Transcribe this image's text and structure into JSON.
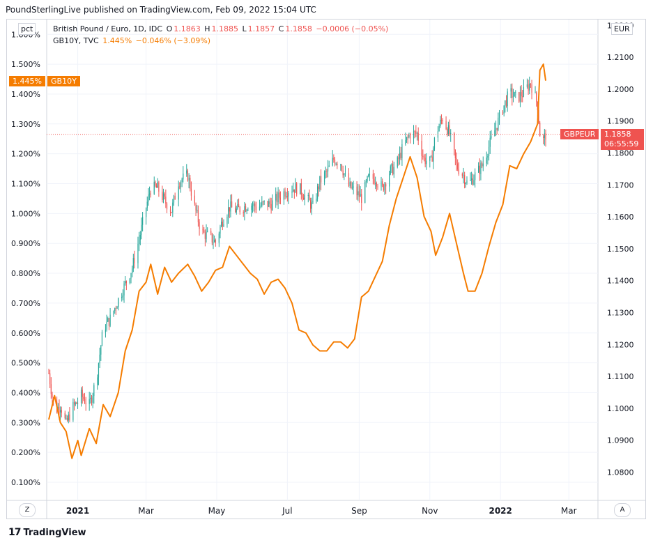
{
  "header": {
    "publisher": "PoundSterlingLive published on TradingView.com, Feb 09, 2022 15:04 UTC"
  },
  "legend": {
    "main_symbol": "British Pound / Euro, 1D, IDC",
    "o_label": "O",
    "o_value": "1.1863",
    "h_label": "H",
    "h_value": "1.1885",
    "l_label": "L",
    "l_value": "1.1857",
    "c_label": "C",
    "c_value": "1.1858",
    "change": "−0.0006 (−0.05%)",
    "overlay_symbol": "GB10Y, TVC",
    "overlay_value": "1.445%",
    "overlay_change": "−0.046% (−3.09%)"
  },
  "axes": {
    "left_unit": "pct",
    "right_unit": "EUR",
    "left_ticks": [
      "0.100%",
      "0.200%",
      "0.300%",
      "0.400%",
      "0.500%",
      "0.600%",
      "0.700%",
      "0.800%",
      "0.900%",
      "1.000%",
      "1.100%",
      "1.200%",
      "1.300%",
      "1.400%",
      "1.500%",
      "1.600%"
    ],
    "right_ticks": [
      "1.0800",
      "1.0900",
      "1.1000",
      "1.1100",
      "1.1200",
      "1.1300",
      "1.1400",
      "1.1500",
      "1.1600",
      "1.1700",
      "1.1800",
      "1.1900",
      "1.2000",
      "1.2100",
      "1.2200"
    ],
    "x_ticks": [
      "2021",
      "Mar",
      "May",
      "Jul",
      "Sep",
      "Nov",
      "2022",
      "Mar"
    ],
    "x_ticks_bold": [
      "2021",
      "2022"
    ]
  },
  "tags": {
    "gb10y_value": "1.445%",
    "gb10y_name": "GB10Y",
    "gbpeur_name": "GBPEUR",
    "gbpeur_value": "1.1858",
    "gbpeur_countdown": "06:55:59"
  },
  "buttons": {
    "left_scale": "Z",
    "right_scale": "A"
  },
  "footer": {
    "brand": "TradingView",
    "logo": "17"
  },
  "colors": {
    "up": "#26a69a",
    "down": "#ef5350",
    "yield_line": "#f57c00",
    "grid": "#f0f3fa",
    "price_line": "#ef5350"
  },
  "chart_data": {
    "type": "line",
    "x_start": "2020-12-07",
    "x_end": "2022-02-09",
    "series": [
      {
        "name": "GB10Y, TVC",
        "axis": "left",
        "unit": "pct",
        "points": [
          [
            "2020-12-07",
            0.31
          ],
          [
            "2020-12-12",
            0.39
          ],
          [
            "2020-12-17",
            0.3
          ],
          [
            "2020-12-22",
            0.27
          ],
          [
            "2020-12-27",
            0.18
          ],
          [
            "2021-01-01",
            0.24
          ],
          [
            "2021-01-04",
            0.19
          ],
          [
            "2021-01-11",
            0.28
          ],
          [
            "2021-01-17",
            0.23
          ],
          [
            "2021-01-23",
            0.36
          ],
          [
            "2021-01-29",
            0.32
          ],
          [
            "2021-02-05",
            0.4
          ],
          [
            "2021-02-11",
            0.54
          ],
          [
            "2021-02-17",
            0.61
          ],
          [
            "2021-02-23",
            0.74
          ],
          [
            "2021-03-01",
            0.77
          ],
          [
            "2021-03-05",
            0.83
          ],
          [
            "2021-03-11",
            0.73
          ],
          [
            "2021-03-17",
            0.82
          ],
          [
            "2021-03-23",
            0.77
          ],
          [
            "2021-03-29",
            0.8
          ],
          [
            "2021-04-06",
            0.83
          ],
          [
            "2021-04-12",
            0.79
          ],
          [
            "2021-04-18",
            0.74
          ],
          [
            "2021-04-24",
            0.77
          ],
          [
            "2021-04-30",
            0.81
          ],
          [
            "2021-05-06",
            0.82
          ],
          [
            "2021-05-12",
            0.89
          ],
          [
            "2021-05-18",
            0.86
          ],
          [
            "2021-05-24",
            0.83
          ],
          [
            "2021-05-30",
            0.8
          ],
          [
            "2021-06-05",
            0.78
          ],
          [
            "2021-06-11",
            0.73
          ],
          [
            "2021-06-17",
            0.77
          ],
          [
            "2021-06-23",
            0.78
          ],
          [
            "2021-06-29",
            0.75
          ],
          [
            "2021-07-05",
            0.7
          ],
          [
            "2021-07-11",
            0.61
          ],
          [
            "2021-07-17",
            0.6
          ],
          [
            "2021-07-23",
            0.56
          ],
          [
            "2021-07-29",
            0.54
          ],
          [
            "2021-08-04",
            0.54
          ],
          [
            "2021-08-10",
            0.57
          ],
          [
            "2021-08-16",
            0.57
          ],
          [
            "2021-08-22",
            0.55
          ],
          [
            "2021-08-28",
            0.58
          ],
          [
            "2021-09-03",
            0.72
          ],
          [
            "2021-09-09",
            0.74
          ],
          [
            "2021-09-15",
            0.79
          ],
          [
            "2021-09-21",
            0.84
          ],
          [
            "2021-09-27",
            0.96
          ],
          [
            "2021-10-03",
            1.05
          ],
          [
            "2021-10-09",
            1.12
          ],
          [
            "2021-10-15",
            1.19
          ],
          [
            "2021-10-21",
            1.12
          ],
          [
            "2021-10-27",
            0.99
          ],
          [
            "2021-11-02",
            0.94
          ],
          [
            "2021-11-06",
            0.86
          ],
          [
            "2021-11-12",
            0.92
          ],
          [
            "2021-11-18",
            1.0
          ],
          [
            "2021-11-24",
            0.9
          ],
          [
            "2021-11-30",
            0.8
          ],
          [
            "2021-12-04",
            0.74
          ],
          [
            "2021-12-10",
            0.74
          ],
          [
            "2021-12-16",
            0.8
          ],
          [
            "2021-12-22",
            0.89
          ],
          [
            "2021-12-28",
            0.97
          ],
          [
            "2022-01-03",
            1.03
          ],
          [
            "2022-01-09",
            1.16
          ],
          [
            "2022-01-15",
            1.15
          ],
          [
            "2022-01-21",
            1.2
          ],
          [
            "2022-01-27",
            1.24
          ],
          [
            "2022-02-02",
            1.3
          ],
          [
            "2022-02-04",
            1.48
          ],
          [
            "2022-02-07",
            1.5
          ],
          [
            "2022-02-09",
            1.445
          ]
        ]
      },
      {
        "name": "British Pound / Euro, 1D, IDC",
        "axis": "right",
        "unit": "EUR",
        "points": [
          [
            "2020-12-07",
            1.111
          ],
          [
            "2020-12-12",
            1.099
          ],
          [
            "2020-12-17",
            1.101
          ],
          [
            "2020-12-22",
            1.095
          ],
          [
            "2020-12-27",
            1.1
          ],
          [
            "2021-01-01",
            1.102
          ],
          [
            "2021-01-04",
            1.104
          ],
          [
            "2021-01-11",
            1.101
          ],
          [
            "2021-01-17",
            1.109
          ],
          [
            "2021-01-23",
            1.125
          ],
          [
            "2021-01-29",
            1.128
          ],
          [
            "2021-02-05",
            1.134
          ],
          [
            "2021-02-11",
            1.139
          ],
          [
            "2021-02-17",
            1.144
          ],
          [
            "2021-02-23",
            1.153
          ],
          [
            "2021-03-01",
            1.163
          ],
          [
            "2021-03-05",
            1.169
          ],
          [
            "2021-03-11",
            1.169
          ],
          [
            "2021-03-17",
            1.165
          ],
          [
            "2021-03-23",
            1.162
          ],
          [
            "2021-03-29",
            1.171
          ],
          [
            "2021-04-06",
            1.173
          ],
          [
            "2021-04-12",
            1.163
          ],
          [
            "2021-04-18",
            1.155
          ],
          [
            "2021-04-24",
            1.154
          ],
          [
            "2021-04-30",
            1.152
          ],
          [
            "2021-05-06",
            1.159
          ],
          [
            "2021-05-12",
            1.163
          ],
          [
            "2021-05-18",
            1.162
          ],
          [
            "2021-05-24",
            1.163
          ],
          [
            "2021-05-30",
            1.164
          ],
          [
            "2021-06-05",
            1.163
          ],
          [
            "2021-06-11",
            1.164
          ],
          [
            "2021-06-17",
            1.164
          ],
          [
            "2021-06-23",
            1.166
          ],
          [
            "2021-06-29",
            1.168
          ],
          [
            "2021-07-05",
            1.169
          ],
          [
            "2021-07-11",
            1.169
          ],
          [
            "2021-07-17",
            1.166
          ],
          [
            "2021-07-23",
            1.163
          ],
          [
            "2021-07-29",
            1.171
          ],
          [
            "2021-08-04",
            1.174
          ],
          [
            "2021-08-10",
            1.178
          ],
          [
            "2021-08-16",
            1.177
          ],
          [
            "2021-08-22",
            1.17
          ],
          [
            "2021-08-28",
            1.168
          ],
          [
            "2021-09-03",
            1.166
          ],
          [
            "2021-09-09",
            1.172
          ],
          [
            "2021-09-15",
            1.172
          ],
          [
            "2021-09-21",
            1.169
          ],
          [
            "2021-09-27",
            1.174
          ],
          [
            "2021-10-03",
            1.176
          ],
          [
            "2021-10-09",
            1.182
          ],
          [
            "2021-10-15",
            1.186
          ],
          [
            "2021-10-21",
            1.186
          ],
          [
            "2021-10-27",
            1.178
          ],
          [
            "2021-11-02",
            1.177
          ],
          [
            "2021-11-06",
            1.186
          ],
          [
            "2021-11-12",
            1.191
          ],
          [
            "2021-11-18",
            1.186
          ],
          [
            "2021-11-24",
            1.176
          ],
          [
            "2021-11-30",
            1.173
          ],
          [
            "2021-12-04",
            1.17
          ],
          [
            "2021-12-10",
            1.173
          ],
          [
            "2021-12-16",
            1.176
          ],
          [
            "2021-12-22",
            1.182
          ],
          [
            "2021-12-28",
            1.188
          ],
          [
            "2022-01-03",
            1.194
          ],
          [
            "2022-01-09",
            1.199
          ],
          [
            "2022-01-15",
            1.197
          ],
          [
            "2022-01-21",
            1.199
          ],
          [
            "2022-01-27",
            1.202
          ],
          [
            "2022-02-02",
            1.195
          ],
          [
            "2022-02-04",
            1.186
          ],
          [
            "2022-02-07",
            1.184
          ],
          [
            "2022-02-09",
            1.1858
          ]
        ]
      }
    ],
    "ylim_left": [
      0.0,
      1.65
    ],
    "ylim_right": [
      1.07,
      1.225
    ],
    "last_price_line": 1.1858,
    "grid": true
  }
}
